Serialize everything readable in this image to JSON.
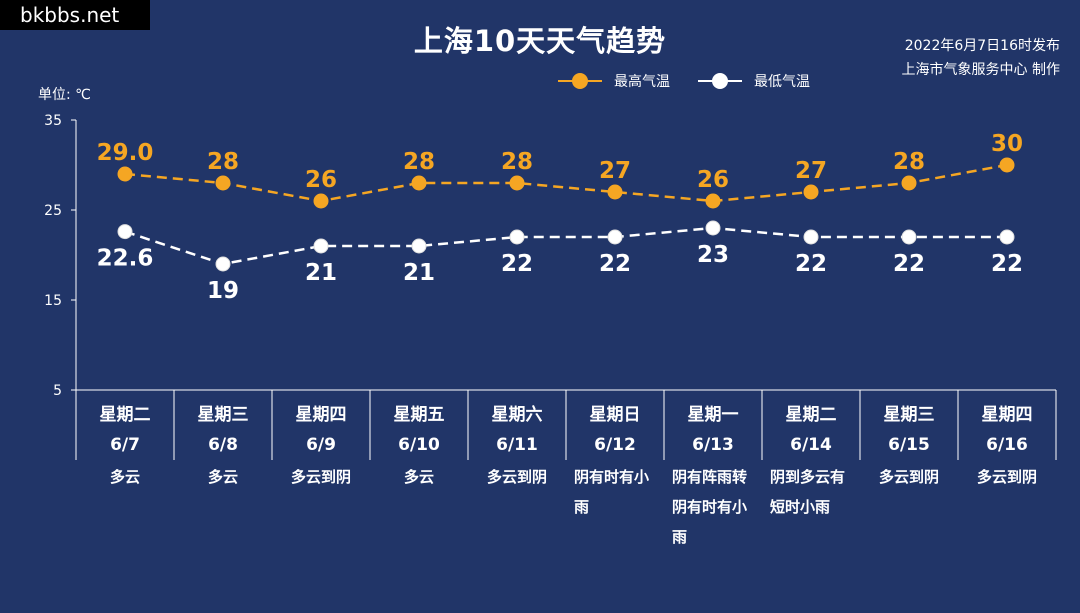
{
  "watermark": "bkbbs.net",
  "title": "上海10天天气趋势",
  "publish": {
    "line1": "2022年6月7日16时发布",
    "line2": "上海市气象服务中心 制作"
  },
  "unit_label": "单位: ℃",
  "colors": {
    "background": "#213568",
    "high": "#f5a623",
    "low": "#ffffff",
    "axis": "#ffffff"
  },
  "chart_data": {
    "type": "line",
    "title": "上海10天天气趋势",
    "ylabel": "单位: ℃",
    "ylim": [
      5,
      35
    ],
    "yticks": [
      5,
      15,
      25,
      35
    ],
    "grid": false,
    "legend_position": "top-right",
    "categories": [
      "6/7",
      "6/8",
      "6/9",
      "6/10",
      "6/11",
      "6/12",
      "6/13",
      "6/14",
      "6/15",
      "6/16"
    ],
    "series": [
      {
        "name": "最高气温",
        "values": [
          29.0,
          28,
          26,
          28,
          28,
          27,
          26,
          27,
          28,
          30
        ],
        "labels": [
          "29.0",
          "28",
          "26",
          "28",
          "28",
          "27",
          "26",
          "27",
          "28",
          "30"
        ]
      },
      {
        "name": "最低气温",
        "values": [
          22.6,
          19,
          21,
          21,
          22,
          22,
          23,
          22,
          22,
          22
        ],
        "labels": [
          "22.6",
          "19",
          "21",
          "21",
          "22",
          "22",
          "23",
          "22",
          "22",
          "22"
        ]
      }
    ]
  },
  "days": [
    {
      "weekday": "星期二",
      "date": "6/7",
      "weather": "多云"
    },
    {
      "weekday": "星期三",
      "date": "6/8",
      "weather": "多云"
    },
    {
      "weekday": "星期四",
      "date": "6/9",
      "weather": "多云到阴"
    },
    {
      "weekday": "星期五",
      "date": "6/10",
      "weather": "多云"
    },
    {
      "weekday": "星期六",
      "date": "6/11",
      "weather": "多云到阴"
    },
    {
      "weekday": "星期日",
      "date": "6/12",
      "weather": "阴有时有小雨"
    },
    {
      "weekday": "星期一",
      "date": "6/13",
      "weather": "阴有阵雨转阴有时有小雨"
    },
    {
      "weekday": "星期二",
      "date": "6/14",
      "weather": "阴到多云有短时小雨"
    },
    {
      "weekday": "星期三",
      "date": "6/15",
      "weather": "多云到阴"
    },
    {
      "weekday": "星期四",
      "date": "6/16",
      "weather": "多云到阴"
    }
  ]
}
